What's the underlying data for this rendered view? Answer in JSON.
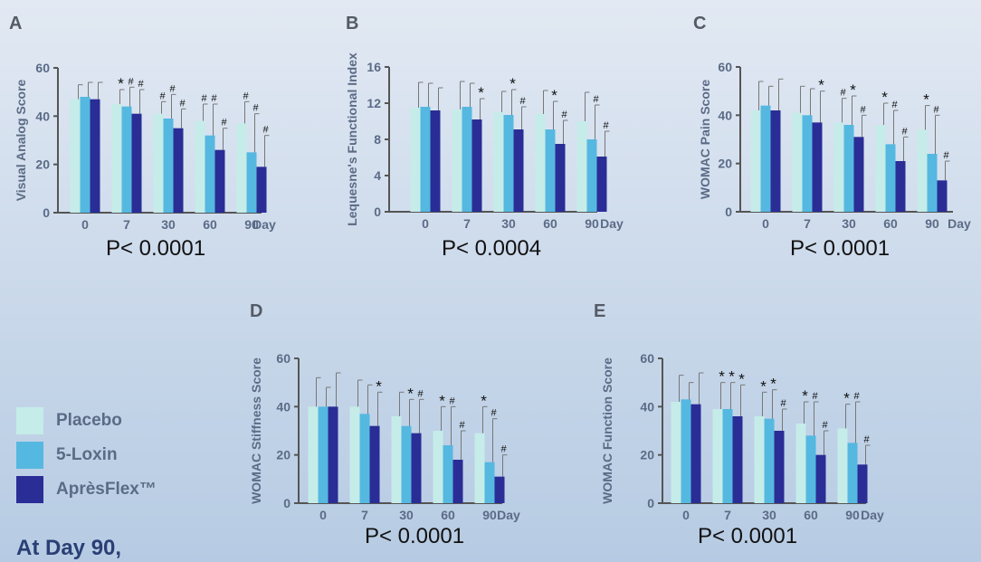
{
  "colors": {
    "placebo": "#c5ece9",
    "loxin": "#55b8e0",
    "apresflex": "#2a2d95",
    "axis": "#555555",
    "text": "#5b6b86"
  },
  "legend": [
    {
      "label": "Placebo",
      "color": "#c5ece9"
    },
    {
      "label": "5-Loxin",
      "color": "#55b8e0"
    },
    {
      "label": "AprèsFlex™",
      "color": "#2a2d95"
    }
  ],
  "bottom_note": "At Day 90,",
  "chart_data": [
    {
      "panel": "A",
      "type": "bar",
      "ylabel": "Visual Analog Score",
      "xlabel": "Day",
      "categories": [
        "0",
        "7",
        "30",
        "60",
        "90"
      ],
      "ylim": [
        0,
        60
      ],
      "yticks": [
        0,
        20,
        40,
        60
      ],
      "series": [
        {
          "name": "Placebo",
          "values": [
            47,
            45,
            41,
            38,
            37
          ],
          "errors": [
            6,
            6,
            5,
            7,
            9
          ]
        },
        {
          "name": "5-Loxin",
          "values": [
            48,
            44,
            39,
            32,
            25
          ],
          "errors": [
            6,
            8,
            10,
            13,
            16
          ]
        },
        {
          "name": "AprèsFlex™",
          "values": [
            47,
            41,
            35,
            26,
            19
          ],
          "errors": [
            7,
            10,
            8,
            9,
            13
          ]
        }
      ],
      "significance": [
        [],
        [
          "*",
          "#",
          "#"
        ],
        [
          "#",
          "#",
          "#"
        ],
        [
          "#",
          "#",
          "#"
        ],
        [
          "#",
          "#",
          "#"
        ]
      ],
      "p_value": "P< 0.0001"
    },
    {
      "panel": "B",
      "type": "bar",
      "ylabel": "Lequesne's Functional Index",
      "xlabel": "Day",
      "categories": [
        "0",
        "7",
        "30",
        "60",
        "90"
      ],
      "ylim": [
        0,
        16
      ],
      "yticks": [
        0,
        4,
        8,
        12,
        16
      ],
      "series": [
        {
          "name": "Placebo",
          "values": [
            11.5,
            11.3,
            11.0,
            10.8,
            10.0
          ],
          "errors": [
            2.8,
            3.1,
            2.3,
            2.6,
            3.2
          ]
        },
        {
          "name": "5-Loxin",
          "values": [
            11.6,
            11.6,
            10.7,
            9.1,
            8.0
          ],
          "errors": [
            2.6,
            2.6,
            2.8,
            3.1,
            3.8
          ]
        },
        {
          "name": "AprèsFlex™",
          "values": [
            11.2,
            10.2,
            9.1,
            7.5,
            6.1
          ],
          "errors": [
            2.5,
            2.3,
            2.5,
            2.6,
            2.8
          ]
        }
      ],
      "significance": [
        [],
        [
          "*"
        ],
        [
          "*",
          "#"
        ],
        [
          "*",
          "#"
        ],
        [
          "#",
          "#"
        ]
      ],
      "p_value": "P< 0.0004"
    },
    {
      "panel": "C",
      "type": "bar",
      "ylabel": "WOMAC Pain Score",
      "xlabel": "Day",
      "categories": [
        "0",
        "7",
        "30",
        "60",
        "90"
      ],
      "ylim": [
        0,
        60
      ],
      "yticks": [
        0,
        20,
        40,
        60
      ],
      "series": [
        {
          "name": "Placebo",
          "values": [
            42,
            41,
            37,
            36,
            34
          ],
          "errors": [
            12,
            11,
            10,
            9,
            10
          ]
        },
        {
          "name": "5-Loxin",
          "values": [
            44,
            40,
            36,
            28,
            24
          ],
          "errors": [
            8,
            11,
            12,
            14,
            16
          ]
        },
        {
          "name": "AprèsFlex™",
          "values": [
            42,
            37,
            31,
            21,
            13
          ],
          "errors": [
            13,
            13,
            9,
            10,
            8
          ]
        }
      ],
      "significance": [
        [],
        [
          "*"
        ],
        [
          "#",
          "*",
          "#"
        ],
        [
          "*",
          "#",
          "#"
        ],
        [
          "*",
          "#",
          "#"
        ]
      ],
      "p_value": "P< 0.0001"
    },
    {
      "panel": "D",
      "type": "bar",
      "ylabel": "WOMAC Stiffness Score",
      "xlabel": "Day",
      "categories": [
        "0",
        "7",
        "30",
        "60",
        "90"
      ],
      "ylim": [
        0,
        60
      ],
      "yticks": [
        0,
        20,
        40,
        60
      ],
      "series": [
        {
          "name": "Placebo",
          "values": [
            40,
            40,
            36,
            30,
            29
          ],
          "errors": [
            12,
            11,
            10,
            10,
            11
          ]
        },
        {
          "name": "5-Loxin",
          "values": [
            40,
            37,
            32,
            24,
            17
          ],
          "errors": [
            8,
            12,
            11,
            16,
            18
          ]
        },
        {
          "name": "AprèsFlex™",
          "values": [
            40,
            32,
            29,
            18,
            11
          ],
          "errors": [
            14,
            14,
            14,
            12,
            9
          ]
        }
      ],
      "significance": [
        [],
        [
          "*"
        ],
        [
          "*",
          "#"
        ],
        [
          "*",
          "#",
          "#"
        ],
        [
          "*",
          "#",
          "#"
        ]
      ],
      "p_value": "P< 0.0001"
    },
    {
      "panel": "E",
      "type": "bar",
      "ylabel": "WOMAC Function Score",
      "xlabel": "Day",
      "categories": [
        "0",
        "7",
        "30",
        "60",
        "90"
      ],
      "ylim": [
        0,
        60
      ],
      "yticks": [
        0,
        20,
        40,
        60
      ],
      "series": [
        {
          "name": "Placebo",
          "values": [
            42,
            39,
            36,
            33,
            31
          ],
          "errors": [
            11,
            11,
            10,
            9,
            10
          ]
        },
        {
          "name": "5-Loxin",
          "values": [
            43,
            39,
            35,
            28,
            25
          ],
          "errors": [
            7,
            11,
            12,
            14,
            17
          ]
        },
        {
          "name": "AprèsFlex™",
          "values": [
            41,
            36,
            30,
            20,
            16
          ],
          "errors": [
            13,
            13,
            9,
            10,
            8
          ]
        }
      ],
      "significance": [
        [],
        [
          "*",
          "*",
          "*"
        ],
        [
          "*",
          "*",
          "#"
        ],
        [
          "*",
          "#",
          "#"
        ],
        [
          "*",
          "#",
          "#"
        ]
      ],
      "p_value": "P< 0.0001"
    }
  ]
}
